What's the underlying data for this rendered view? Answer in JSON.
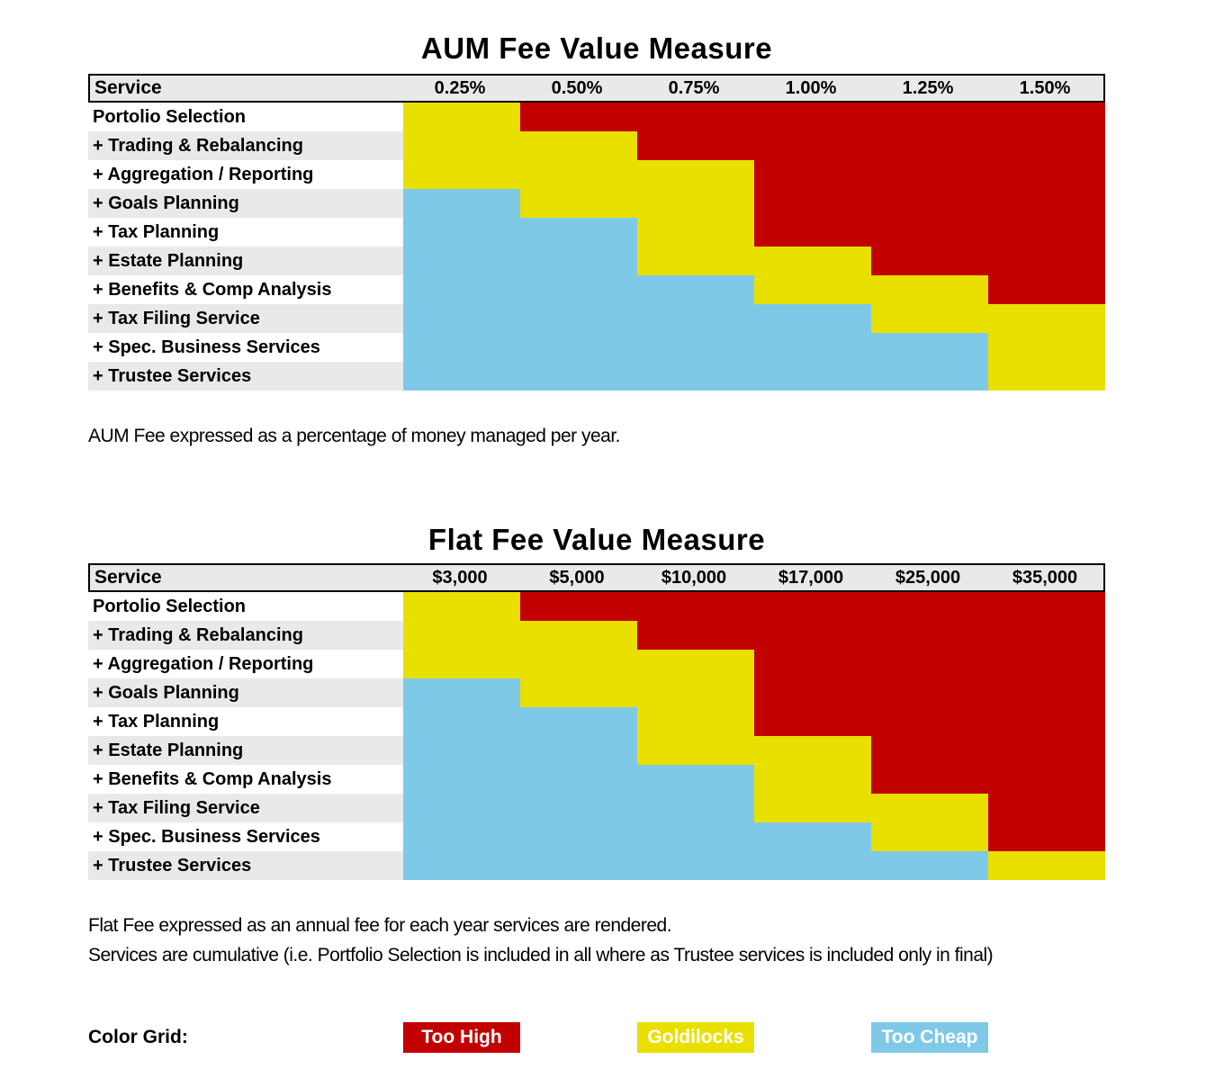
{
  "colors": {
    "too_high": "#C20000",
    "goldilocks": "#E9E000",
    "too_cheap": "#7FC9E8",
    "header_bg": "#E9E9E9",
    "alt_row_bg": "#E9E9E9"
  },
  "chart_data": [
    {
      "id": "aum",
      "type": "heatmap",
      "title": "AUM Fee Value Measure",
      "header_label": "Service",
      "columns": [
        "0.25%",
        "0.50%",
        "0.75%",
        "1.00%",
        "1.25%",
        "1.50%"
      ],
      "rows": [
        {
          "label": "Portolio Selection",
          "cells": [
            "goldilocks",
            "too_high",
            "too_high",
            "too_high",
            "too_high",
            "too_high"
          ]
        },
        {
          "label": "+ Trading & Rebalancing",
          "cells": [
            "goldilocks",
            "goldilocks",
            "too_high",
            "too_high",
            "too_high",
            "too_high"
          ]
        },
        {
          "label": "+ Aggregation / Reporting",
          "cells": [
            "goldilocks",
            "goldilocks",
            "goldilocks",
            "too_high",
            "too_high",
            "too_high"
          ]
        },
        {
          "label": "+ Goals Planning",
          "cells": [
            "too_cheap",
            "goldilocks",
            "goldilocks",
            "too_high",
            "too_high",
            "too_high"
          ]
        },
        {
          "label": "+ Tax Planning",
          "cells": [
            "too_cheap",
            "too_cheap",
            "goldilocks",
            "too_high",
            "too_high",
            "too_high"
          ]
        },
        {
          "label": "+ Estate Planning",
          "cells": [
            "too_cheap",
            "too_cheap",
            "goldilocks",
            "goldilocks",
            "too_high",
            "too_high"
          ]
        },
        {
          "label": "+ Benefits & Comp Analysis",
          "cells": [
            "too_cheap",
            "too_cheap",
            "too_cheap",
            "goldilocks",
            "goldilocks",
            "too_high"
          ]
        },
        {
          "label": "+ Tax Filing Service",
          "cells": [
            "too_cheap",
            "too_cheap",
            "too_cheap",
            "too_cheap",
            "goldilocks",
            "goldilocks"
          ]
        },
        {
          "label": "+ Spec. Business Services",
          "cells": [
            "too_cheap",
            "too_cheap",
            "too_cheap",
            "too_cheap",
            "too_cheap",
            "goldilocks"
          ]
        },
        {
          "label": "+ Trustee Services",
          "cells": [
            "too_cheap",
            "too_cheap",
            "too_cheap",
            "too_cheap",
            "too_cheap",
            "goldilocks"
          ]
        }
      ],
      "footnotes": [
        "AUM Fee expressed as a percentage of money managed per year."
      ]
    },
    {
      "id": "flat",
      "type": "heatmap",
      "title": "Flat Fee Value Measure",
      "header_label": "Service",
      "columns": [
        "$3,000",
        "$5,000",
        "$10,000",
        "$17,000",
        "$25,000",
        "$35,000"
      ],
      "rows": [
        {
          "label": "Portolio Selection",
          "cells": [
            "goldilocks",
            "too_high",
            "too_high",
            "too_high",
            "too_high",
            "too_high"
          ]
        },
        {
          "label": "+ Trading & Rebalancing",
          "cells": [
            "goldilocks",
            "goldilocks",
            "too_high",
            "too_high",
            "too_high",
            "too_high"
          ]
        },
        {
          "label": "+ Aggregation / Reporting",
          "cells": [
            "goldilocks",
            "goldilocks",
            "goldilocks",
            "too_high",
            "too_high",
            "too_high"
          ]
        },
        {
          "label": "+ Goals Planning",
          "cells": [
            "too_cheap",
            "goldilocks",
            "goldilocks",
            "too_high",
            "too_high",
            "too_high"
          ]
        },
        {
          "label": "+ Tax Planning",
          "cells": [
            "too_cheap",
            "too_cheap",
            "goldilocks",
            "too_high",
            "too_high",
            "too_high"
          ]
        },
        {
          "label": "+ Estate Planning",
          "cells": [
            "too_cheap",
            "too_cheap",
            "goldilocks",
            "goldilocks",
            "too_high",
            "too_high"
          ]
        },
        {
          "label": "+ Benefits & Comp Analysis",
          "cells": [
            "too_cheap",
            "too_cheap",
            "too_cheap",
            "goldilocks",
            "too_high",
            "too_high"
          ]
        },
        {
          "label": "+ Tax Filing Service",
          "cells": [
            "too_cheap",
            "too_cheap",
            "too_cheap",
            "goldilocks",
            "goldilocks",
            "too_high"
          ]
        },
        {
          "label": "+ Spec. Business Services",
          "cells": [
            "too_cheap",
            "too_cheap",
            "too_cheap",
            "too_cheap",
            "goldilocks",
            "too_high"
          ]
        },
        {
          "label": "+ Trustee Services",
          "cells": [
            "too_cheap",
            "too_cheap",
            "too_cheap",
            "too_cheap",
            "too_cheap",
            "goldilocks"
          ]
        }
      ],
      "footnotes": [
        "Flat Fee expressed as an annual fee for each year services are rendered.",
        "Services are cumulative (i.e. Portfolio Selection is included in all where as Trustee services is included only in final)"
      ]
    }
  ],
  "legend": {
    "label": "Color Grid:",
    "items": [
      {
        "label": "Too High",
        "color_key": "too_high"
      },
      {
        "label": "Goldilocks",
        "color_key": "goldilocks"
      },
      {
        "label": "Too Cheap",
        "color_key": "too_cheap"
      }
    ]
  }
}
